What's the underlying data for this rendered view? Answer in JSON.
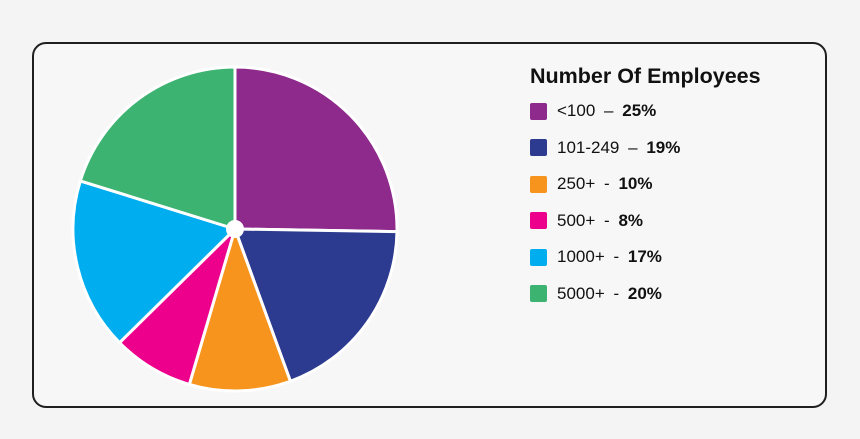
{
  "chart_data": {
    "type": "pie",
    "title": "Number Of Employees",
    "slices": [
      {
        "label": "<100",
        "sep": "–",
        "pct_label": "25%",
        "value": 25,
        "color": "#8e2a8c"
      },
      {
        "label": "101-249",
        "sep": "–",
        "pct_label": "19%",
        "value": 19,
        "color": "#2c3a8f"
      },
      {
        "label": "250+",
        "sep": "-",
        "pct_label": "10%",
        "value": 10,
        "color": "#f7941d"
      },
      {
        "label": "500+",
        "sep": "-",
        "pct_label": "8%",
        "value": 8,
        "color": "#ec008c"
      },
      {
        "label": "1000+",
        "sep": "-",
        "pct_label": "17%",
        "value": 17,
        "color": "#00aeef"
      },
      {
        "label": "5000+",
        "sep": "-",
        "pct_label": "20%",
        "value": 20,
        "color": "#3cb371"
      }
    ],
    "start_angle": "12 o'clock",
    "direction": "clockwise",
    "legend_position": "right"
  }
}
